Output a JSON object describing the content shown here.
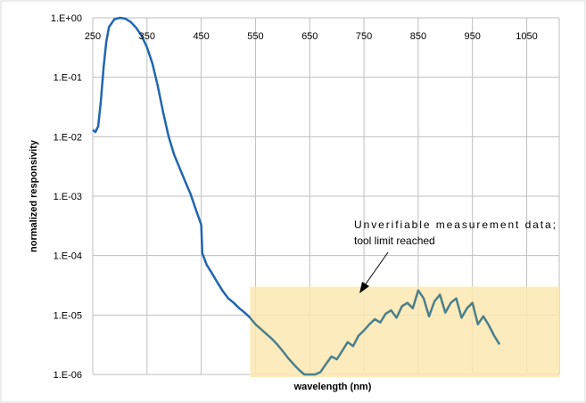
{
  "chart_data": {
    "type": "line",
    "title": "",
    "xlabel": "wavelength (nm)",
    "ylabel": "normalized responsivity",
    "xscale": "linear",
    "yscale": "log",
    "xlim": [
      250,
      1110
    ],
    "ylim": [
      1e-06,
      1
    ],
    "grid": true,
    "legend": "none",
    "x_ticks": [
      250,
      350,
      450,
      550,
      650,
      750,
      850,
      950,
      1050
    ],
    "x_tick_labels": [
      "250",
      "350",
      "450",
      "550",
      "650",
      "750",
      "850",
      "950",
      "1050"
    ],
    "y_ticks": [
      1e-06,
      1e-05,
      0.0001,
      0.001,
      0.01,
      0.1,
      1
    ],
    "y_tick_labels": [
      "1.E-06",
      "1.E-05",
      "1.E-04",
      "1.E-03",
      "1.E-02",
      "1.E-01",
      "1.E+00"
    ],
    "series_colors": {
      "main": "#2166b0",
      "tail": "#4a7f8c"
    },
    "series": [
      {
        "x": [
          250,
          255,
          260,
          265,
          270,
          275,
          280,
          290,
          300,
          310,
          320,
          330,
          340,
          350,
          360,
          370,
          380,
          390,
          400,
          410,
          420,
          430,
          440,
          450,
          452,
          460,
          470,
          480,
          490,
          500,
          510,
          520,
          530,
          540
        ],
        "y": [
          0.013,
          0.012,
          0.015,
          0.04,
          0.15,
          0.4,
          0.7,
          0.95,
          1.0,
          0.97,
          0.85,
          0.68,
          0.5,
          0.32,
          0.17,
          0.07,
          0.025,
          0.01,
          0.005,
          0.003,
          0.0018,
          0.0011,
          0.0006,
          0.00033,
          0.00011,
          7e-05,
          5e-05,
          3.5e-05,
          2.5e-05,
          1.9e-05,
          1.6e-05,
          1.3e-05,
          1.1e-05,
          9e-06
        ]
      },
      {
        "x": [
          540,
          550,
          560,
          570,
          580,
          590,
          600,
          610,
          620,
          630,
          640,
          650,
          660,
          670,
          680,
          690,
          700,
          710,
          720,
          730,
          740,
          750,
          760,
          770,
          780,
          790,
          800,
          810,
          820,
          830,
          840,
          850,
          860,
          870,
          880,
          890,
          900,
          910,
          920,
          930,
          940,
          950,
          960,
          970,
          980,
          990,
          1000
        ],
        "y": [
          9e-06,
          7e-06,
          5.8e-06,
          4.8e-06,
          4e-06,
          3.2e-06,
          2.5e-06,
          1.9e-06,
          1.5e-06,
          1.2e-06,
          1e-06,
          1e-06,
          1e-06,
          1.1e-06,
          1.5e-06,
          2e-06,
          1.8e-06,
          2.5e-06,
          3.5e-06,
          3e-06,
          4.5e-06,
          5.5e-06,
          7e-06,
          8.5e-06,
          7.5e-06,
          1.05e-05,
          1.2e-05,
          9e-06,
          1.4e-05,
          1.6e-05,
          1.3e-05,
          2.6e-05,
          1.9e-05,
          9.5e-06,
          1.7e-05,
          2.2e-05,
          1.1e-05,
          1.6e-05,
          1.9e-05,
          9e-06,
          1.3e-05,
          1.6e-05,
          7e-06,
          9.5e-06,
          6.8e-06,
          4.5e-06,
          3.2e-06
        ]
      }
    ],
    "annotation": {
      "text_line1": "Unverifiable measurement data;",
      "text_line2": "tool limit reached",
      "region_xlim": [
        540,
        1110
      ],
      "region_ylim": [
        9e-07,
        3e-05
      ],
      "region_color": "#fbe7b0"
    }
  }
}
